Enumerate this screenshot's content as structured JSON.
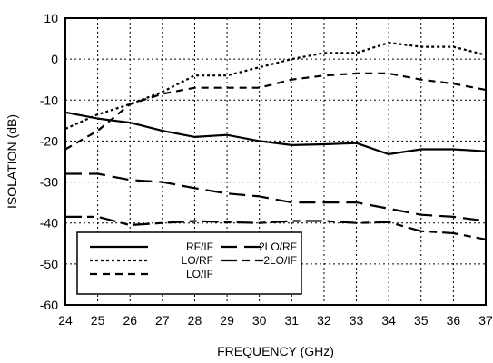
{
  "chart_data": {
    "type": "line",
    "title": "",
    "xlabel": "FREQUENCY (GHz)",
    "ylabel": "ISOLATION (dB)",
    "xlim": [
      24,
      37
    ],
    "ylim": [
      -60,
      10
    ],
    "xticks": [
      24,
      25,
      26,
      27,
      28,
      29,
      30,
      31,
      32,
      33,
      34,
      35,
      36,
      37
    ],
    "yticks": [
      10,
      0,
      -10,
      -20,
      -30,
      -40,
      -50,
      -60
    ],
    "grid": true,
    "legend_placement": "bottom-left",
    "series": [
      {
        "name": "RF/IF",
        "style": "solid",
        "x": [
          24,
          25,
          26,
          27,
          28,
          29,
          30,
          31,
          32,
          33,
          34,
          35,
          36,
          37
        ],
        "y": [
          -13,
          -14.5,
          -15.5,
          -17.5,
          -19,
          -18.5,
          -20,
          -21,
          -20.8,
          -20.5,
          -23.2,
          -22,
          -22,
          -22.5
        ]
      },
      {
        "name": "LO/RF",
        "style": "dotted",
        "x": [
          24,
          25,
          26,
          27,
          28,
          29,
          30,
          31,
          32,
          33,
          34,
          35,
          36,
          37
        ],
        "y": [
          -17,
          -13.5,
          -11,
          -8,
          -4,
          -4,
          -2,
          0,
          1.5,
          1.5,
          4,
          3,
          3,
          1
        ]
      },
      {
        "name": "LO/IF",
        "style": "short-dash",
        "x": [
          24,
          25,
          26,
          27,
          28,
          29,
          30,
          31,
          32,
          33,
          34,
          35,
          36,
          37
        ],
        "y": [
          -22,
          -17.5,
          -11,
          -8.5,
          -7,
          -7,
          -7,
          -5,
          -4,
          -3.5,
          -3.5,
          -5,
          -6,
          -7.5
        ]
      },
      {
        "name": "2LO/RF",
        "style": "long-dash",
        "x": [
          24,
          25,
          26,
          27,
          28,
          29,
          30,
          31,
          32,
          33,
          34,
          35,
          36,
          37
        ],
        "y": [
          -28,
          -28,
          -29.5,
          -30,
          -31.5,
          -32.8,
          -33.5,
          -35,
          -35,
          -35,
          -36.5,
          -38,
          -38.5,
          -39.5
        ]
      },
      {
        "name": "2LO/IF",
        "style": "long-short-dash",
        "x": [
          24,
          25,
          26,
          27,
          28,
          29,
          30,
          31,
          32,
          33,
          34,
          35,
          36,
          37
        ],
        "y": [
          -38.5,
          -38.5,
          -40.5,
          -40,
          -39.5,
          -39.8,
          -40,
          -39.5,
          -39.5,
          -40,
          -39.8,
          -42,
          -42.5,
          -44
        ]
      }
    ]
  }
}
